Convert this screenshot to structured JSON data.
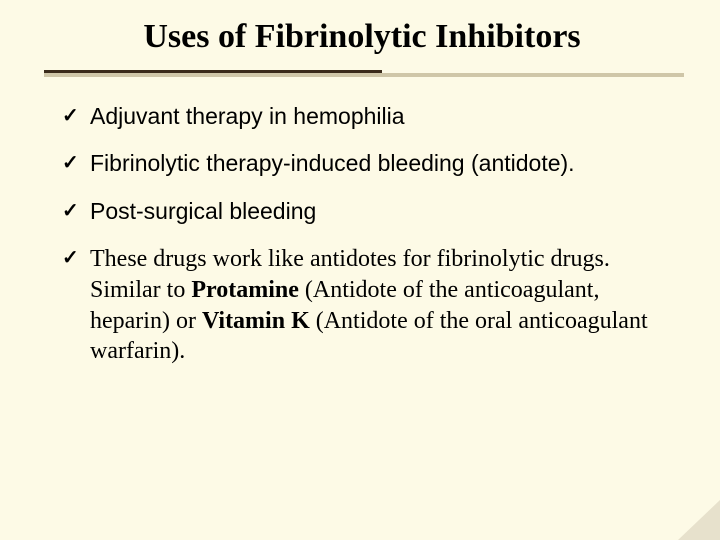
{
  "slide": {
    "background_color": "#fdfae6",
    "title": {
      "text": "Uses of Fibrinolytic Inhibitors",
      "font_family": "Times New Roman",
      "font_size_pt": 26,
      "font_weight": "bold",
      "color": "#000000",
      "align": "center"
    },
    "divider": {
      "dark_color": "#3a2a1a",
      "light_color": "#cfc6a8",
      "dark_fraction_width": 0.55
    },
    "bullet": {
      "glyph": "✓",
      "color_check": "#2f4f2f"
    },
    "items": [
      {
        "kind": "sans",
        "runs": [
          {
            "text": "Adjuvant therapy in hemophilia",
            "bold": false
          }
        ]
      },
      {
        "kind": "sans",
        "runs": [
          {
            "text": "Fibrinolytic therapy-induced bleeding (antidote).",
            "bold": false
          }
        ]
      },
      {
        "kind": "sans",
        "runs": [
          {
            "text": "Post-surgical bleeding",
            "bold": false
          }
        ]
      },
      {
        "kind": "serif",
        "runs": [
          {
            "text": "These drugs work like antidotes for fibrinolytic drugs. Similar to ",
            "bold": false
          },
          {
            "text": "Protamine ",
            "bold": true
          },
          {
            "text": "(Antidote of the anticoagulant, heparin) or ",
            "bold": false
          },
          {
            "text": "Vitamin K ",
            "bold": true
          },
          {
            "text": "(Antidote of the oral anticoagulant warfarin).",
            "bold": false
          }
        ]
      }
    ],
    "typography": {
      "sans_font": "Arial",
      "sans_size_pt": 17,
      "serif_font": "Times New Roman",
      "serif_size_pt": 18,
      "line_height": 1.28,
      "text_color": "#000000"
    },
    "corner_accent": {
      "color": "#6e5a3e",
      "opacity": 0.15
    }
  }
}
